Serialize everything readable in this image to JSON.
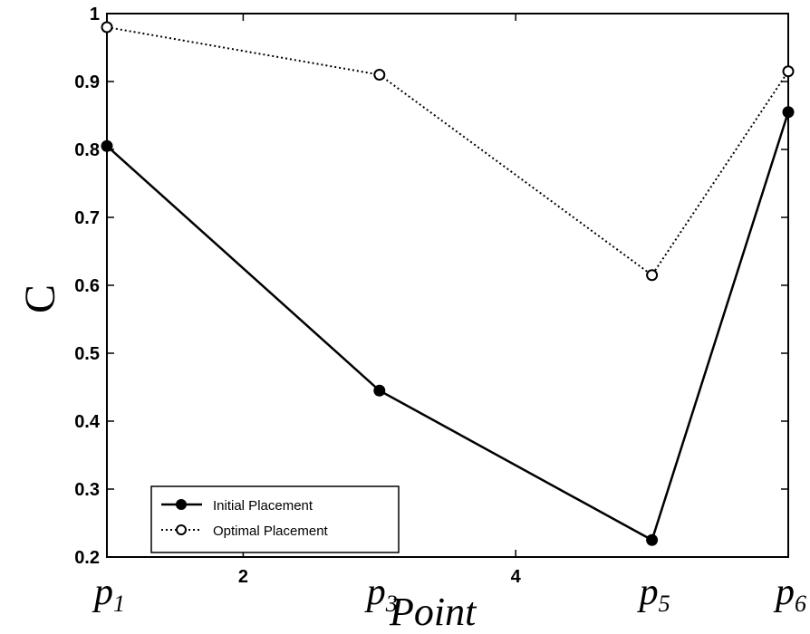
{
  "chart_data": {
    "type": "line",
    "xlabel": "Point",
    "ylabel": "C",
    "xlim": [
      1,
      6
    ],
    "ylim": [
      0.2,
      1
    ],
    "grid": false,
    "legend_position": "bottom-left",
    "x_ticks": [
      2,
      4
    ],
    "y_ticks": [
      0.2,
      0.3,
      0.4,
      0.5,
      0.6,
      0.7,
      0.8,
      0.9,
      1
    ],
    "y_tick_labels": [
      "0.2",
      "0.3",
      "0.4",
      "0.5",
      "0.6",
      "0.7",
      "0.8",
      "0.9",
      "1"
    ],
    "x_tick_labels": [
      "2",
      "4"
    ],
    "point_labels": [
      {
        "x": 1,
        "base": "p",
        "sub": "1"
      },
      {
        "x": 3,
        "base": "p",
        "sub": "3"
      },
      {
        "x": 5,
        "base": "p",
        "sub": "5"
      },
      {
        "x": 6,
        "base": "p",
        "sub": "6"
      }
    ],
    "x": [
      1,
      3,
      5,
      6
    ],
    "series": [
      {
        "name": "Initial Placement",
        "style": "solid",
        "marker": "filled-circle",
        "values": [
          0.805,
          0.445,
          0.225,
          0.855
        ]
      },
      {
        "name": "Optimal Placement",
        "style": "dotted",
        "marker": "open-circle",
        "values": [
          0.98,
          0.91,
          0.615,
          0.915
        ]
      }
    ]
  }
}
